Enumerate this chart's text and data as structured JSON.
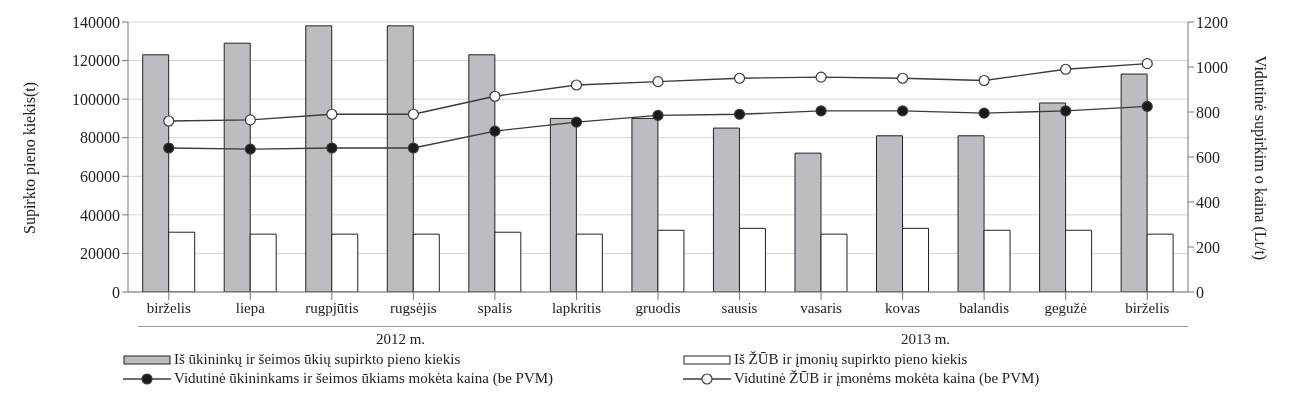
{
  "chart_data": {
    "type": "bar",
    "ylabel": "Supirkto pieno kiekis(t)",
    "y2label": "Vidutinė supirkim o kaina (Lt/t)",
    "categories": [
      "birželis",
      "liepa",
      "rugpjūtis",
      "rugsėjis",
      "spalis",
      "lapkritis",
      "gruodis",
      "sausis",
      "vasaris",
      "kovas",
      "balandis",
      "gegužė",
      "birželis"
    ],
    "series": [
      {
        "name": "Iš ūkininkų ir šeimos ūkių supirkto pieno kiekis",
        "color": "#bcbdc1",
        "values": [
          123000,
          129000,
          138000,
          138000,
          123000,
          90000,
          90000,
          85000,
          72000,
          81000,
          81000,
          98000,
          113000
        ]
      },
      {
        "name": "Iš ŽŪB ir įmonių supirkto pieno kiekis",
        "color": "#ffffff",
        "values": [
          31000,
          30000,
          30000,
          30000,
          31000,
          30000,
          32000,
          33000,
          30000,
          33000,
          32000,
          32000,
          30000
        ]
      },
      {
        "name": "Vidutinė ūkininkams ir šeimos ūkiams mokėta kaina (be PVM)",
        "color": "#1a1a1a",
        "type": "line",
        "axis": "y2",
        "values": [
          640,
          635,
          640,
          640,
          715,
          755,
          785,
          790,
          805,
          805,
          795,
          805,
          825
        ]
      },
      {
        "name": "Vidutinė ŽŪB ir įmonėms mokėta kaina (be PVM)",
        "color": "#ffffff",
        "type": "line",
        "axis": "y2",
        "values": [
          760,
          765,
          790,
          790,
          870,
          920,
          935,
          950,
          955,
          950,
          940,
          990,
          1015
        ]
      }
    ],
    "annotations": [
      "2012 m.",
      "2013 m."
    ],
    "ylim": [
      0,
      140000
    ],
    "yticks": [
      0,
      20000,
      40000,
      60000,
      80000,
      100000,
      120000,
      140000
    ],
    "y2lim": [
      0,
      1200
    ],
    "y2ticks": [
      0,
      200,
      400,
      600,
      800,
      1000,
      1200
    ],
    "grid": "y",
    "legend": "bottom",
    "marker": "circle"
  }
}
